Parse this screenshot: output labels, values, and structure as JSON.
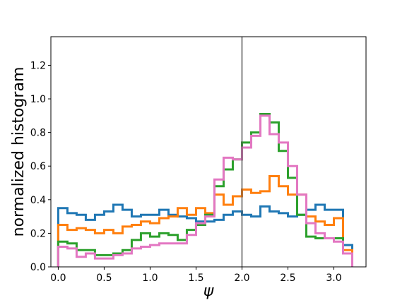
{
  "chart_data": {
    "type": "line",
    "title": "",
    "xlabel": "ψ",
    "ylabel": "normalized histogram",
    "xlim": [
      -0.08,
      3.35
    ],
    "ylim": [
      0.0,
      1.37
    ],
    "xticks": [
      0.0,
      0.5,
      1.0,
      1.5,
      2.0,
      2.5,
      3.0
    ],
    "xtick_labels": [
      "0.0",
      "0.5",
      "1.0",
      "1.5",
      "2.0",
      "2.5",
      "3.0"
    ],
    "yticks": [
      0.0,
      0.2,
      0.4,
      0.6,
      0.8,
      1.0,
      1.2
    ],
    "ytick_labels": [
      "0.0",
      "0.2",
      "0.4",
      "0.6",
      "0.8",
      "1.0",
      "1.2"
    ],
    "grid": false,
    "vline": {
      "x": 2.0,
      "color": "#555555"
    },
    "bin_edges": [
      0.0,
      0.1,
      0.2,
      0.3,
      0.4,
      0.5,
      0.6,
      0.7,
      0.8,
      0.9,
      1.0,
      1.1,
      1.2,
      1.3,
      1.4,
      1.5,
      1.6,
      1.7,
      1.8,
      1.9,
      2.0,
      2.1,
      2.2,
      2.3,
      2.4,
      2.5,
      2.6,
      2.7,
      2.8,
      2.9,
      3.0,
      3.1,
      3.2
    ],
    "series": [
      {
        "color": "#1f77b4",
        "values": [
          0.35,
          0.32,
          0.31,
          0.28,
          0.31,
          0.33,
          0.37,
          0.34,
          0.3,
          0.31,
          0.31,
          0.34,
          0.31,
          0.3,
          0.29,
          0.27,
          0.27,
          0.28,
          0.31,
          0.33,
          0.31,
          0.3,
          0.36,
          0.33,
          0.32,
          0.3,
          0.31,
          0.34,
          0.37,
          0.34,
          0.34,
          0.13
        ]
      },
      {
        "color": "#ff7f0e",
        "values": [
          0.25,
          0.22,
          0.23,
          0.22,
          0.2,
          0.22,
          0.2,
          0.24,
          0.25,
          0.27,
          0.26,
          0.29,
          0.3,
          0.35,
          0.31,
          0.35,
          0.32,
          0.43,
          0.37,
          0.42,
          0.46,
          0.44,
          0.45,
          0.54,
          0.48,
          0.43,
          0.43,
          0.3,
          0.27,
          0.25,
          0.29,
          0.1
        ]
      },
      {
        "color": "#2ca02c",
        "values": [
          0.15,
          0.14,
          0.1,
          0.1,
          0.07,
          0.07,
          0.08,
          0.1,
          0.16,
          0.2,
          0.18,
          0.2,
          0.19,
          0.16,
          0.22,
          0.25,
          0.31,
          0.48,
          0.58,
          0.64,
          0.74,
          0.8,
          0.91,
          0.86,
          0.69,
          0.53,
          0.31,
          0.18,
          0.17,
          0.17,
          0.17,
          0.08
        ]
      },
      {
        "color": "#e377c2",
        "values": [
          0.12,
          0.11,
          0.06,
          0.08,
          0.05,
          0.05,
          0.07,
          0.08,
          0.11,
          0.12,
          0.13,
          0.14,
          0.14,
          0.14,
          0.19,
          0.26,
          0.3,
          0.52,
          0.65,
          0.64,
          0.71,
          0.78,
          0.9,
          0.79,
          0.74,
          0.6,
          0.43,
          0.26,
          0.2,
          0.17,
          0.15,
          0.08
        ]
      }
    ]
  }
}
